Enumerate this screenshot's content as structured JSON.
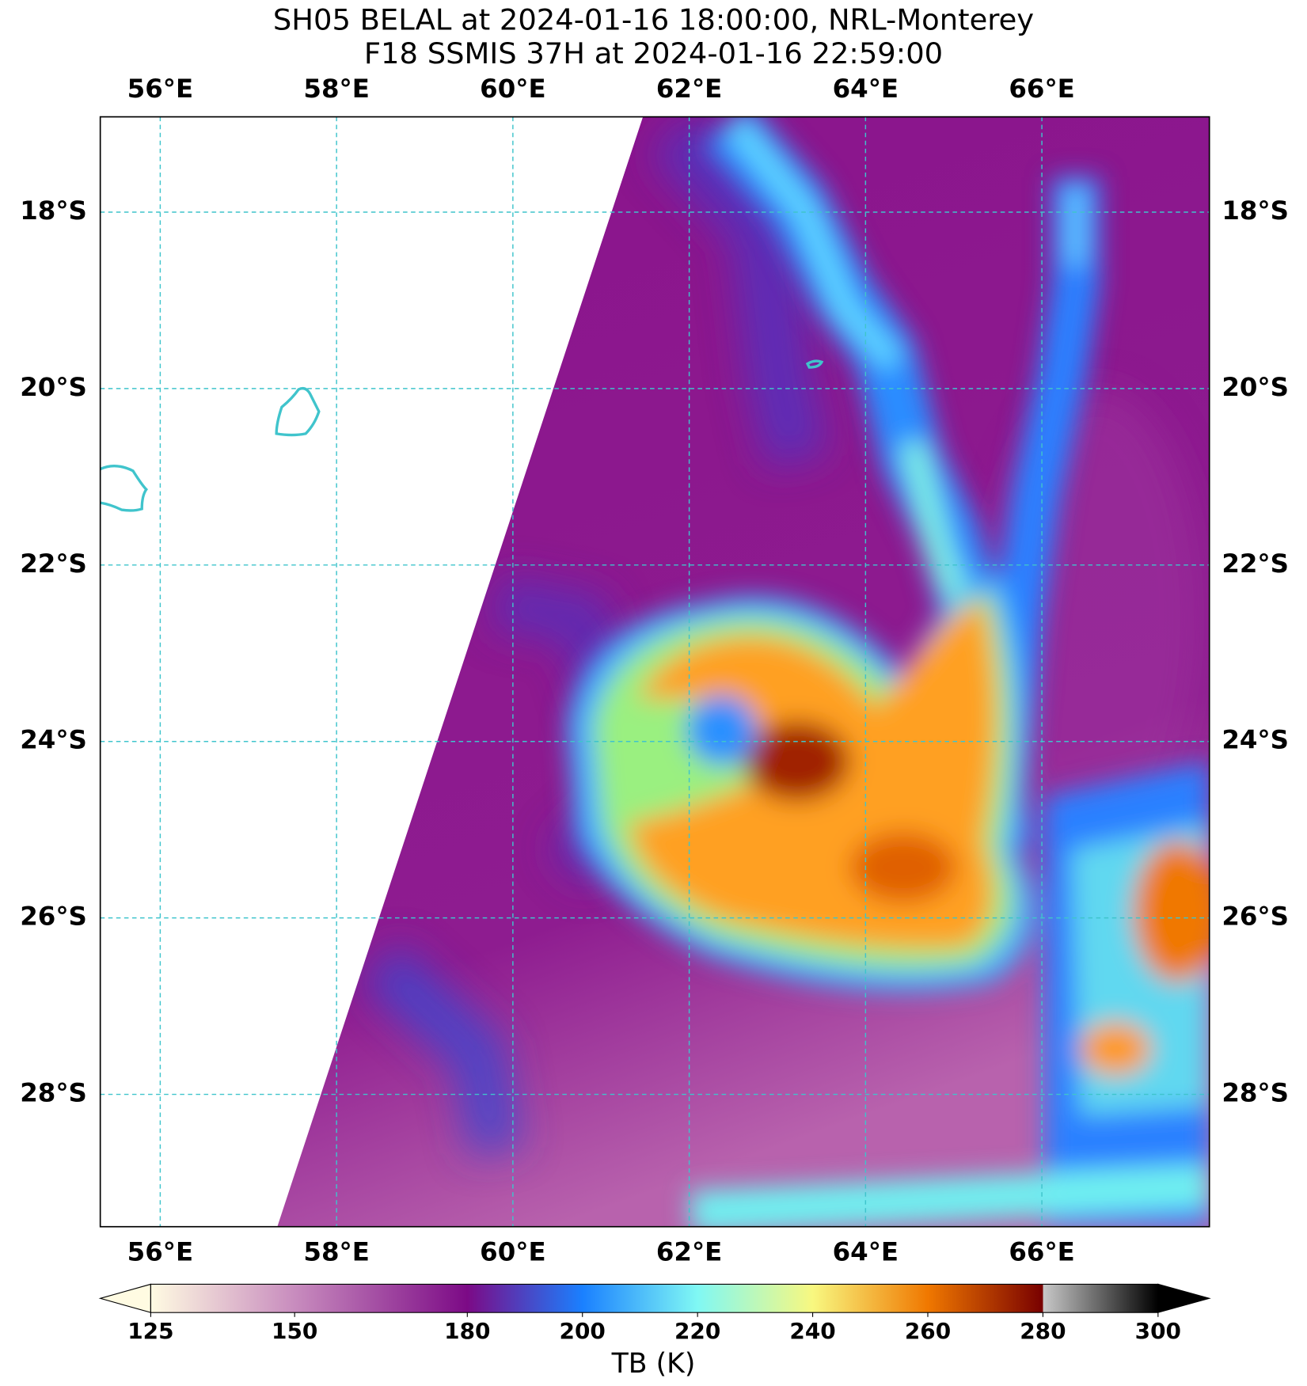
{
  "map": {
    "title": [
      "SH05 BELAL at 2024-01-16 18:00:00, NRL-Monterey",
      "F18 SSMIS 37H at 2024-01-16 22:59:00"
    ],
    "xlim": [
      55.32,
      67.9
    ],
    "ylim": [
      -29.5,
      -16.92
    ],
    "xticks": [
      {
        "value": 56,
        "label": "56°E"
      },
      {
        "value": 58,
        "label": "58°E"
      },
      {
        "value": 60,
        "label": "60°E"
      },
      {
        "value": 62,
        "label": "62°E"
      },
      {
        "value": 64,
        "label": "64°E"
      },
      {
        "value": 66,
        "label": "66°E"
      }
    ],
    "yticks": [
      {
        "value": -18,
        "label": "18°S"
      },
      {
        "value": -20,
        "label": "20°S"
      },
      {
        "value": -22,
        "label": "22°S"
      },
      {
        "value": -24,
        "label": "24°S"
      },
      {
        "value": -26,
        "label": "26°S"
      },
      {
        "value": -28,
        "label": "28°S"
      }
    ],
    "grid_color": "#3fc4cc",
    "colorbar": {
      "label": "TB (K)",
      "range": [
        125,
        300
      ],
      "ticks": [
        125,
        150,
        180,
        200,
        220,
        240,
        260,
        280,
        300
      ],
      "colors": [
        {
          "value": 125,
          "color": "#fffbe2"
        },
        {
          "value": 150,
          "color": "#c88cbe"
        },
        {
          "value": 180,
          "color": "#7c0a86"
        },
        {
          "value": 200,
          "color": "#1a80ff"
        },
        {
          "value": 220,
          "color": "#80f8f4"
        },
        {
          "value": 240,
          "color": "#f8f880"
        },
        {
          "value": 260,
          "color": "#f07800"
        },
        {
          "value": 280,
          "color": "#780000"
        },
        {
          "value": 280,
          "color": "#c8c8c8"
        },
        {
          "value": 300,
          "color": "#000000"
        }
      ]
    }
  }
}
